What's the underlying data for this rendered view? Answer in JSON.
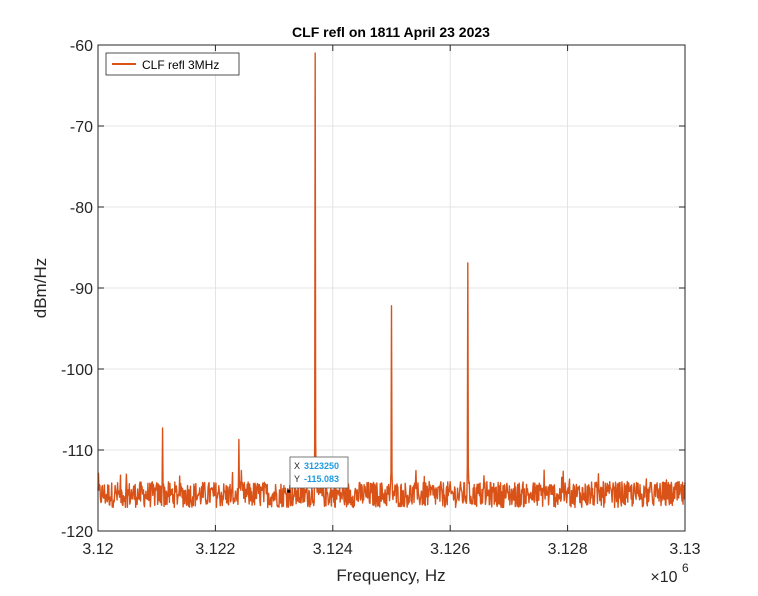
{
  "chart_data": {
    "type": "line",
    "title": "CLF refl on 1811 April 23 2023",
    "xlabel": "Frequency, Hz",
    "ylabel": "dBm/Hz",
    "x_exponent_label": "×10",
    "x_exponent_power": "6",
    "xlim": [
      3120000,
      3130000
    ],
    "ylim": [
      -120,
      -60
    ],
    "x_ticks": [
      3120000,
      3122000,
      3124000,
      3126000,
      3128000,
      3130000
    ],
    "x_tick_labels": [
      "3.12",
      "3.122",
      "3.124",
      "3.126",
      "3.128",
      "3.13"
    ],
    "y_ticks": [
      -120,
      -110,
      -100,
      -90,
      -80,
      -70,
      -60
    ],
    "y_tick_labels": [
      "-120",
      "-110",
      "-100",
      "-90",
      "-80",
      "-70",
      "-60"
    ],
    "grid": true,
    "legend_location": "top-left",
    "series": [
      {
        "name": "CLF refl 3MHz",
        "color": "#D95319",
        "noise_floor": -115.5,
        "peaks": [
          {
            "x": 3121100,
            "y": -107.3
          },
          {
            "x": 3122400,
            "y": -108.7
          },
          {
            "x": 3123700,
            "y": -61.0
          },
          {
            "x": 3125000,
            "y": -92.2
          },
          {
            "x": 3126300,
            "y": -86.9
          },
          {
            "x": 3127600,
            "y": -112.5
          }
        ]
      }
    ],
    "datatip": {
      "x_label": "X",
      "x_value": "3123250",
      "y_label": "Y",
      "y_value": "-115.083",
      "x": 3123250,
      "y": -115.083,
      "value_color": "#1E9BE0"
    }
  }
}
